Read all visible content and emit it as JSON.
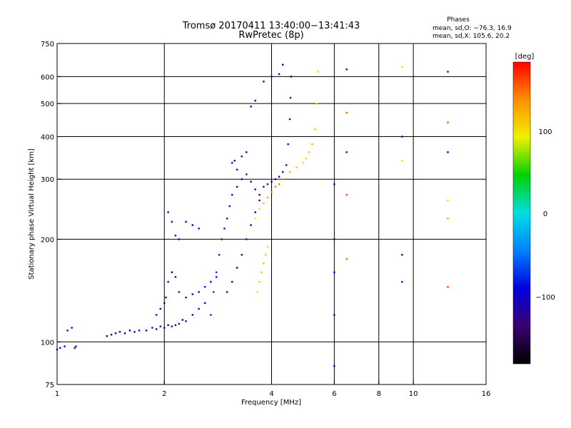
{
  "figure": {
    "title_line1": "Tromsø 20170411 13:40:00−13:41:43",
    "title_line2": "RwPretec (8p)"
  },
  "phase_info": {
    "heading": "Phases",
    "line_o": "mean, sd,O: −76.3, 16.9",
    "line_x": "mean, sd,X: 105.6, 20.2"
  },
  "colorbar": {
    "label": "[deg]",
    "tick_labels": [
      "100",
      "0",
      "−100"
    ],
    "colors": [
      "#000000",
      "#3a0070",
      "#0000e0",
      "#0080ff",
      "#00e0e0",
      "#00d000",
      "#f0f000",
      "#ff9000",
      "#ff0000"
    ]
  },
  "chart_data": {
    "type": "scatter",
    "title": "Tromsø 20170411 13:40:00−13:41:43",
    "subtitle": "RwPretec (8p)",
    "xlabel": "Frequency [MHz]",
    "ylabel": "Stationary phase Virtual Height [km]",
    "x_scale": "log",
    "y_scale": "log",
    "xlim": [
      1,
      16
    ],
    "ylim": [
      75,
      750
    ],
    "x_ticks": [
      1,
      2,
      4,
      6,
      8,
      10,
      16
    ],
    "x_tick_labels": [
      "1",
      "2",
      "4",
      "6",
      "8",
      "10",
      "16"
    ],
    "x_gridlines": [
      2,
      4,
      6,
      8,
      10
    ],
    "y_ticks": [
      75,
      100,
      200,
      300,
      400,
      500,
      600,
      750
    ],
    "y_tick_labels": [
      "75",
      "100",
      "200",
      "300",
      "400",
      "500",
      "600",
      "750"
    ],
    "y_gridlines": [
      100,
      200,
      300,
      400,
      500,
      600
    ],
    "grid": true,
    "color_variable": "phase [deg]",
    "color_range": [
      -180,
      180
    ],
    "series": [
      {
        "x": [
          1.0,
          1.02,
          1.05,
          1.07,
          1.1,
          1.12,
          1.13
        ],
        "y": [
          95,
          96,
          97,
          108,
          110,
          96,
          97
        ],
        "phase": [
          -100,
          -100,
          -95,
          -95,
          -90,
          -100,
          -100
        ]
      },
      {
        "x": [
          1.38,
          1.42,
          1.46,
          1.5,
          1.55,
          1.6,
          1.65,
          1.7,
          1.78,
          1.85,
          1.9,
          1.95,
          2.0,
          2.05,
          2.1,
          2.15,
          2.2,
          2.25,
          2.3,
          2.4,
          2.5,
          2.6
        ],
        "y": [
          104,
          105,
          106,
          107,
          106,
          108,
          107,
          108,
          108,
          110,
          109,
          111,
          110,
          112,
          111,
          112,
          113,
          116,
          115,
          120,
          125,
          130
        ],
        "phase": [
          -105,
          -108,
          -110,
          -105,
          -112,
          -108,
          -110,
          -115,
          -110,
          -112,
          -115,
          -110,
          -118,
          -112,
          -110,
          -115,
          -112,
          -110,
          -108,
          -105,
          -100,
          -98
        ]
      },
      {
        "x": [
          1.9,
          1.95,
          2.0,
          2.02,
          2.05,
          2.1,
          2.15,
          2.2,
          2.3,
          2.4,
          2.5,
          2.6,
          2.7,
          2.8
        ],
        "y": [
          120,
          125,
          130,
          135,
          150,
          160,
          155,
          140,
          135,
          138,
          140,
          145,
          150,
          155
        ],
        "phase": [
          -110,
          -115,
          -112,
          -120,
          -118,
          -115,
          -120,
          -110,
          -105,
          -100,
          -95,
          -92,
          -90,
          -88
        ]
      },
      {
        "x": [
          2.05,
          2.1,
          2.15,
          2.2,
          2.3,
          2.4,
          2.5
        ],
        "y": [
          240,
          225,
          205,
          200,
          225,
          220,
          215
        ],
        "phase": [
          -110,
          -105,
          -100,
          -95,
          -95,
          -92,
          -90
        ]
      },
      {
        "x": [
          2.7,
          2.75,
          2.8,
          2.85,
          2.9,
          2.95,
          3.0,
          3.05,
          3.1,
          3.2,
          3.3,
          3.4,
          3.5,
          3.6,
          3.7
        ],
        "y": [
          120,
          140,
          160,
          180,
          200,
          215,
          230,
          250,
          270,
          285,
          300,
          310,
          295,
          280,
          270
        ],
        "phase": [
          -80,
          -75,
          -70,
          -80,
          -85,
          -90,
          -95,
          -100,
          -105,
          -110,
          -115,
          -118,
          -120,
          -120,
          -118
        ]
      },
      {
        "x": [
          3.0,
          3.1,
          3.2,
          3.3,
          3.4,
          3.5,
          3.6,
          3.7
        ],
        "y": [
          140,
          150,
          165,
          180,
          200,
          220,
          240,
          260
        ],
        "phase": [
          -95,
          -100,
          -105,
          -108,
          -110,
          -112,
          -115,
          -118
        ]
      },
      {
        "x": [
          3.8,
          3.9,
          4.0,
          4.1,
          4.2,
          4.3,
          4.4,
          4.45,
          4.5,
          4.52,
          4.54
        ],
        "y": [
          285,
          290,
          295,
          300,
          305,
          315,
          330,
          380,
          450,
          520,
          600
        ],
        "phase": [
          -110,
          -108,
          -105,
          -108,
          -110,
          -112,
          -115,
          -118,
          -120,
          -118,
          -115
        ]
      },
      {
        "x": [
          3.1,
          3.15,
          3.2,
          3.3,
          3.4,
          3.5,
          3.6,
          3.8,
          4.0,
          4.2,
          4.3
        ],
        "y": [
          335,
          340,
          320,
          350,
          360,
          490,
          510,
          580,
          600,
          610,
          650
        ],
        "phase": [
          -110,
          -115,
          -112,
          -110,
          -108,
          -105,
          -100,
          -98,
          -100,
          -102,
          -105
        ]
      },
      {
        "x": [
          3.6,
          3.7,
          3.8,
          3.9,
          4.0,
          4.1,
          4.2,
          4.3,
          4.5,
          4.7,
          4.9,
          5.0,
          5.1,
          5.2,
          5.3,
          5.35,
          5.4
        ],
        "y": [
          230,
          245,
          255,
          265,
          275,
          285,
          290,
          300,
          315,
          325,
          335,
          345,
          360,
          380,
          420,
          500,
          620
        ],
        "phase": [
          90,
          100,
          110,
          120,
          130,
          140,
          145,
          130,
          120,
          110,
          100,
          105,
          110,
          112,
          115,
          105,
          100
        ]
      },
      {
        "x": [
          3.65,
          3.7,
          3.75,
          3.8,
          3.85,
          3.9
        ],
        "y": [
          140,
          150,
          160,
          170,
          180,
          190
        ],
        "phase": [
          100,
          105,
          110,
          112,
          108,
          104
        ]
      },
      {
        "x": [
          6.0,
          6.0,
          6.0,
          6.0,
          6.0,
          6.5,
          6.5,
          6.5,
          6.5,
          6.5,
          9.3,
          9.3,
          9.3,
          9.3,
          9.3,
          12.5,
          12.5,
          12.5,
          12.5,
          12.5,
          12.5
        ],
        "y": [
          290,
          200,
          160,
          120,
          85,
          630,
          470,
          360,
          270,
          175,
          640,
          400,
          340,
          180,
          150,
          620,
          440,
          360,
          260,
          230,
          145
        ],
        "phase": [
          -100,
          -120,
          -90,
          -110,
          -95,
          -120,
          150,
          -80,
          160,
          150,
          100,
          -110,
          95,
          -120,
          -85,
          -110,
          150,
          -90,
          100,
          70,
          160
        ]
      }
    ]
  }
}
